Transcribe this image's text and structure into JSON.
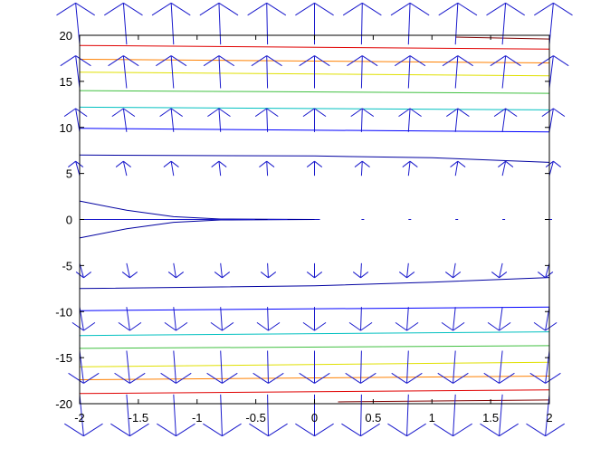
{
  "chart_data": {
    "type": "quiver-contour",
    "title": "",
    "xlabel": "",
    "ylabel": "",
    "xlim": [
      -2,
      2
    ],
    "ylim": [
      -20,
      20
    ],
    "x_ticks": [
      -2,
      -1.5,
      -1,
      -0.5,
      0,
      0.5,
      1,
      1.5,
      2
    ],
    "y_ticks": [
      -20,
      -15,
      -10,
      -5,
      0,
      5,
      10,
      15,
      20
    ],
    "x_tick_labels": [
      "-2",
      "-1.5",
      "-1",
      "-0.5",
      "0",
      "0.5",
      "1",
      "1.5",
      "2"
    ],
    "y_tick_labels": [
      "-20",
      "-15",
      "-10",
      "-5",
      "0",
      "5",
      "10",
      "15",
      "20"
    ],
    "grid": false,
    "legend": "none",
    "quiver": {
      "color": "#1a1acc",
      "x": [
        -2,
        -1.6,
        -1.2,
        -0.8,
        -0.4,
        0,
        0.4,
        0.8,
        1.2,
        1.6,
        2
      ],
      "y": [
        -19,
        -14.25,
        -9.5,
        -4.75,
        0,
        4.75,
        9.5,
        14.25,
        19
      ],
      "note_direction": "arrows point up in upper half plane, down in lower half, length grows with |y|"
    },
    "contours": [
      {
        "color": "#0000a0",
        "points": [
          [
            -2,
            2
          ],
          [
            -1.6,
            1
          ],
          [
            -1.2,
            0.3
          ],
          [
            -0.8,
            0.05
          ],
          [
            0,
            0
          ]
        ]
      },
      {
        "color": "#0000a0",
        "points": [
          [
            -2,
            -2
          ],
          [
            -1.6,
            -1
          ],
          [
            -1.2,
            -0.3
          ],
          [
            -0.8,
            -0.05
          ],
          [
            0,
            0
          ]
        ]
      },
      {
        "color": "#0000a0",
        "points": [
          [
            -2,
            7
          ],
          [
            0,
            6.9
          ],
          [
            1,
            6.7
          ],
          [
            2,
            6.2
          ]
        ]
      },
      {
        "color": "#0000a0",
        "points": [
          [
            -2,
            -7.5
          ],
          [
            0,
            -7.2
          ],
          [
            1,
            -6.8
          ],
          [
            2,
            -6.3
          ]
        ]
      },
      {
        "color": "#0000ff",
        "points": [
          [
            -2,
            9.9
          ],
          [
            2,
            9.5
          ]
        ]
      },
      {
        "color": "#0000ff",
        "points": [
          [
            -2,
            -9.9
          ],
          [
            2,
            -9.5
          ]
        ]
      },
      {
        "color": "#00c0c0",
        "points": [
          [
            -2,
            12.2
          ],
          [
            2,
            11.9
          ]
        ]
      },
      {
        "color": "#00c0c0",
        "points": [
          [
            -2,
            -12.6
          ],
          [
            2,
            -12.2
          ]
        ]
      },
      {
        "color": "#40c040",
        "points": [
          [
            -2,
            14.0
          ],
          [
            2,
            13.7
          ]
        ]
      },
      {
        "color": "#40c040",
        "points": [
          [
            -2,
            -14.0
          ],
          [
            2,
            -13.7
          ]
        ]
      },
      {
        "color": "#e0e000",
        "points": [
          [
            -2,
            16.0
          ],
          [
            2,
            15.6
          ]
        ]
      },
      {
        "color": "#e0e000",
        "points": [
          [
            -2,
            -16.0
          ],
          [
            2,
            -15.5
          ]
        ]
      },
      {
        "color": "#ff8000",
        "points": [
          [
            -2,
            17.4
          ],
          [
            2,
            17.0
          ]
        ]
      },
      {
        "color": "#ff8000",
        "points": [
          [
            -2,
            -17.4
          ],
          [
            2,
            -17.0
          ]
        ]
      },
      {
        "color": "#e00000",
        "points": [
          [
            -2,
            18.9
          ],
          [
            2,
            18.5
          ]
        ]
      },
      {
        "color": "#e00000",
        "points": [
          [
            -2,
            -18.9
          ],
          [
            2,
            -18.5
          ]
        ]
      },
      {
        "color": "#800000",
        "points": [
          [
            1.2,
            19.8
          ],
          [
            2,
            19.6
          ]
        ]
      },
      {
        "color": "#800000",
        "points": [
          [
            0.2,
            -19.8
          ],
          [
            2,
            -19.6
          ]
        ]
      }
    ]
  }
}
